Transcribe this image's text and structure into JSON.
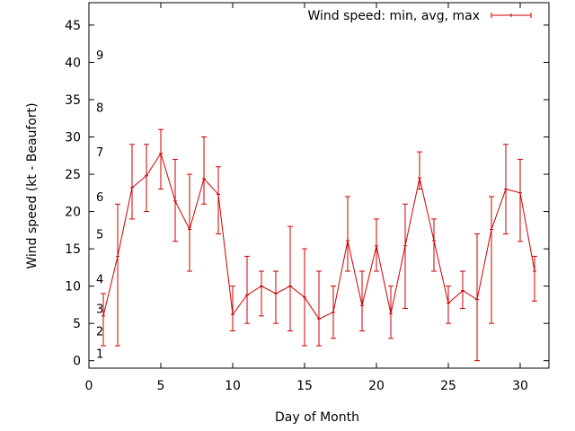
{
  "chart_data": {
    "type": "line",
    "title": "",
    "xlabel": "Day of Month",
    "ylabel": "Wind speed (kt - Beaufort)",
    "xlim": [
      0,
      32
    ],
    "ylim": [
      -1,
      48
    ],
    "x_ticks": [
      0,
      5,
      10,
      15,
      20,
      25,
      30
    ],
    "y_ticks": [
      0,
      5,
      10,
      15,
      20,
      25,
      30,
      35,
      40,
      45
    ],
    "grid": false,
    "legend_position": "top-right",
    "series": [
      {
        "name": "Wind speed: min, avg, max",
        "color": "#cc0000",
        "style": "line-with-errorbars",
        "x": [
          1,
          2,
          3,
          4,
          5,
          6,
          7,
          8,
          9,
          10,
          11,
          12,
          13,
          14,
          15,
          16,
          17,
          18,
          19,
          20,
          21,
          22,
          23,
          24,
          25,
          26,
          27,
          28,
          29,
          30,
          31
        ],
        "avg": [
          6,
          14,
          23.2,
          24.8,
          27.8,
          21.4,
          17.6,
          24.4,
          22.3,
          6.2,
          8.8,
          10,
          9,
          10,
          8.5,
          5.6,
          6.5,
          16.1,
          7.4,
          15.4,
          6.3,
          15.4,
          24.5,
          16.1,
          7.7,
          9.4,
          8.2,
          17.6,
          23,
          22.5,
          12
        ],
        "min": [
          2,
          2,
          19,
          20,
          23,
          16,
          12,
          21,
          17,
          4,
          5,
          6,
          5,
          4,
          2,
          2,
          3,
          12,
          4,
          12,
          3,
          7,
          23,
          12,
          5,
          7,
          0,
          5,
          17,
          16,
          8
        ],
        "max": [
          9,
          21,
          29,
          29,
          31,
          27,
          25,
          30,
          26,
          10,
          14,
          12,
          12,
          18,
          15,
          12,
          10,
          22,
          12,
          19,
          10,
          21,
          28,
          19,
          10,
          12,
          17,
          22,
          29,
          27,
          14
        ]
      }
    ],
    "beaufort_scale": [
      {
        "label": "1",
        "kt": 1
      },
      {
        "label": "2",
        "kt": 4
      },
      {
        "label": "3",
        "kt": 7
      },
      {
        "label": "4",
        "kt": 11
      },
      {
        "label": "5",
        "kt": 17
      },
      {
        "label": "6",
        "kt": 22
      },
      {
        "label": "7",
        "kt": 28
      },
      {
        "label": "8",
        "kt": 34
      },
      {
        "label": "9",
        "kt": 41
      }
    ]
  }
}
